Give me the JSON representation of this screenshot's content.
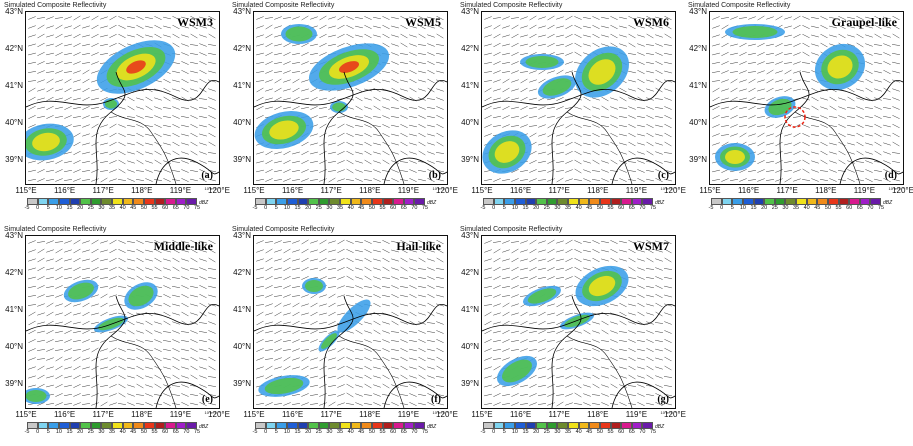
{
  "figure_title": "Simulated Composite Reflectivity",
  "lat_labels": [
    "43°N",
    "42°N",
    "41°N",
    "40°N",
    "39°N"
  ],
  "lon_labels": [
    "115°E",
    "116°E",
    "117°E",
    "118°E",
    "119°E",
    "120°E"
  ],
  "colorbar_labels": [
    "-5",
    "0",
    "5",
    "10",
    "15",
    "20",
    "25",
    "30",
    "35",
    "40",
    "45",
    "50",
    "55",
    "60",
    "65",
    "70",
    "75"
  ],
  "colorbar_colors": [
    "#c8c8c8",
    "#7fd4f0",
    "#3a9ee8",
    "#1e5ed6",
    "#1f3fb0",
    "#52c24a",
    "#2f9c2f",
    "#6e8b2e",
    "#f0e21a",
    "#f0b81a",
    "#f08a1a",
    "#e8361a",
    "#b01e1e",
    "#d81a8e",
    "#a01ec8",
    "#6a1aa8"
  ],
  "colorbar_unit": "dBZ",
  "vector_ref": "10 m s⁻¹",
  "panels": [
    {
      "scheme": "WSM3",
      "tag": "(a)"
    },
    {
      "scheme": "WSM5",
      "tag": "(b)"
    },
    {
      "scheme": "WSM6",
      "tag": "(c)"
    },
    {
      "scheme": "Graupel-like",
      "tag": "(d)"
    },
    {
      "scheme": "Middle-like",
      "tag": "(e)"
    },
    {
      "scheme": "Hail-like",
      "tag": "(f)"
    },
    {
      "scheme": "WSM7",
      "tag": "(g)"
    }
  ]
}
